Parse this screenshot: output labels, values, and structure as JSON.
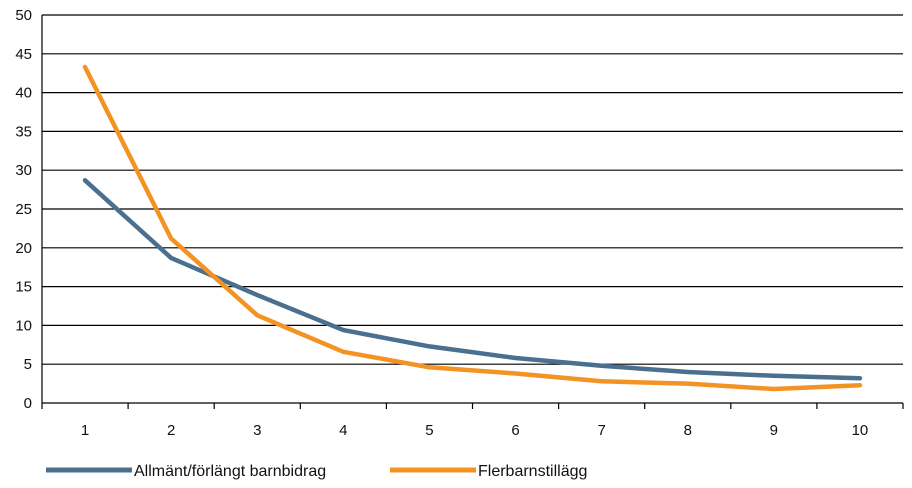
{
  "chart_data": {
    "type": "line",
    "title": "",
    "xlabel": "",
    "ylabel": "",
    "categories": [
      "1",
      "2",
      "3",
      "4",
      "5",
      "6",
      "7",
      "8",
      "9",
      "10"
    ],
    "y_ticks": [
      "0",
      "5",
      "10",
      "15",
      "20",
      "25",
      "30",
      "35",
      "40",
      "45",
      "50"
    ],
    "ylim": [
      0,
      50
    ],
    "grid": "horizontal",
    "legend_position": "bottom-left",
    "series": [
      {
        "name": "Allmänt/förlängt barnbidrag",
        "color": "#4a6f8f",
        "values": [
          28.7,
          18.7,
          13.9,
          9.4,
          7.3,
          5.8,
          4.8,
          4.0,
          3.5,
          3.2
        ]
      },
      {
        "name": "Flerbarnstillägg",
        "color": "#f39324",
        "values": [
          43.3,
          21.2,
          11.3,
          6.6,
          4.6,
          3.8,
          2.8,
          2.5,
          1.8,
          2.3
        ]
      }
    ]
  }
}
